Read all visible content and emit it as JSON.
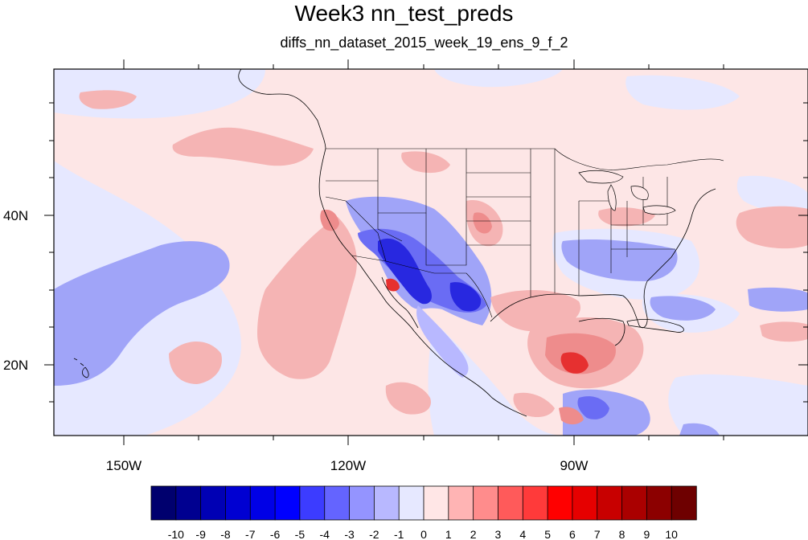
{
  "title": "Week3 nn_test_preds",
  "subtitle": "diffs_nn_dataset_2015_week_19_ens_9_f_2",
  "map": {
    "lon_labels": [
      "150W",
      "120W",
      "90W"
    ],
    "lat_labels": [
      "40N",
      "20N"
    ]
  },
  "colorbar": {
    "labels": [
      "-10",
      "-9",
      "-8",
      "-7",
      "-6",
      "-5",
      "-4",
      "-3",
      "-2",
      "-1",
      "0",
      "1",
      "2",
      "3",
      "4",
      "5",
      "6",
      "7",
      "8",
      "9",
      "10"
    ],
    "colors": [
      "#00006e",
      "#000090",
      "#0000b4",
      "#0000d2",
      "#0000e6",
      "#0000ff",
      "#3c3cff",
      "#6464ff",
      "#9494ff",
      "#b8b8ff",
      "#e6e8ff",
      "#ffe6e6",
      "#ffb4b4",
      "#ff8c8c",
      "#ff5a5a",
      "#ff3a3a",
      "#ff0000",
      "#e60000",
      "#c80000",
      "#aa0000",
      "#8c0000",
      "#6e0000"
    ]
  },
  "palette": {
    "lightpink": "#fde6e6",
    "lightblue": "#e6e8ff",
    "pink": "#f5b4b4",
    "red": "#ee8c8c",
    "deepred": "#e63030",
    "blue": "#a0a4f8",
    "mblue": "#6a6cf4",
    "dblue": "#2828e0"
  }
}
